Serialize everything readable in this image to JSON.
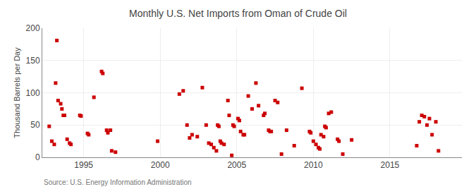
{
  "chart_data": {
    "type": "scatter",
    "title": "Monthly U.S. Net Imports from Oman of Crude Oil",
    "ylabel": "Thousand Barrels per Day",
    "annotations": [
      "Source: U.S. Energy Information Administration"
    ],
    "color": "#cc0000",
    "marker": "square",
    "grid": true,
    "xlim": [
      1992.3,
      2019.7
    ],
    "xticks": [
      1995,
      2000,
      2005,
      2010,
      2015
    ],
    "ylim": [
      0,
      200
    ],
    "yticks": [
      0,
      50,
      100,
      150,
      200
    ],
    "x": [
      1992.75,
      1992.92,
      1993.08,
      1993.17,
      1993.25,
      1993.33,
      1993.5,
      1993.58,
      1993.67,
      1993.75,
      1993.92,
      1994.08,
      1994.17,
      1994.75,
      1994.83,
      1995.25,
      1995.33,
      1995.67,
      1996.17,
      1996.25,
      1996.5,
      1996.58,
      1996.75,
      1996.83,
      1997.08,
      1999.83,
      2001.25,
      2001.5,
      2001.75,
      2001.92,
      2002.08,
      2002.42,
      2002.75,
      2003.0,
      2003.17,
      2003.33,
      2003.5,
      2003.67,
      2003.75,
      2003.83,
      2003.92,
      2004.0,
      2004.17,
      2004.42,
      2004.5,
      2004.67,
      2004.75,
      2004.83,
      2005.08,
      2005.17,
      2005.25,
      2005.42,
      2005.5,
      2005.75,
      2006.0,
      2006.25,
      2006.42,
      2006.75,
      2006.83,
      2007.08,
      2007.17,
      2007.25,
      2007.5,
      2007.67,
      2007.92,
      2008.25,
      2008.75,
      2009.25,
      2009.75,
      2009.83,
      2010.0,
      2010.17,
      2010.33,
      2010.42,
      2010.5,
      2010.67,
      2010.75,
      2010.83,
      2011.0,
      2011.17,
      2011.58,
      2011.67,
      2011.92,
      2012.5,
      2016.75,
      2016.92,
      2017.08,
      2017.25,
      2017.42,
      2017.58,
      2017.75,
      2018.0,
      2018.17
    ],
    "values": [
      48,
      25,
      20,
      115,
      181,
      88,
      83,
      75,
      65,
      65,
      28,
      22,
      20,
      65,
      64,
      37,
      35,
      93,
      133,
      130,
      42,
      38,
      42,
      10,
      8,
      25,
      98,
      103,
      50,
      30,
      35,
      32,
      108,
      50,
      22,
      20,
      15,
      10,
      50,
      48,
      25,
      22,
      20,
      88,
      65,
      3,
      50,
      48,
      60,
      57,
      40,
      35,
      35,
      95,
      75,
      115,
      80,
      65,
      68,
      42,
      40,
      40,
      88,
      85,
      5,
      42,
      18,
      107,
      40,
      38,
      25,
      20,
      15,
      13,
      35,
      32,
      48,
      46,
      68,
      70,
      28,
      25,
      5,
      27,
      18,
      55,
      65,
      63,
      50,
      60,
      35,
      55,
      10
    ]
  }
}
